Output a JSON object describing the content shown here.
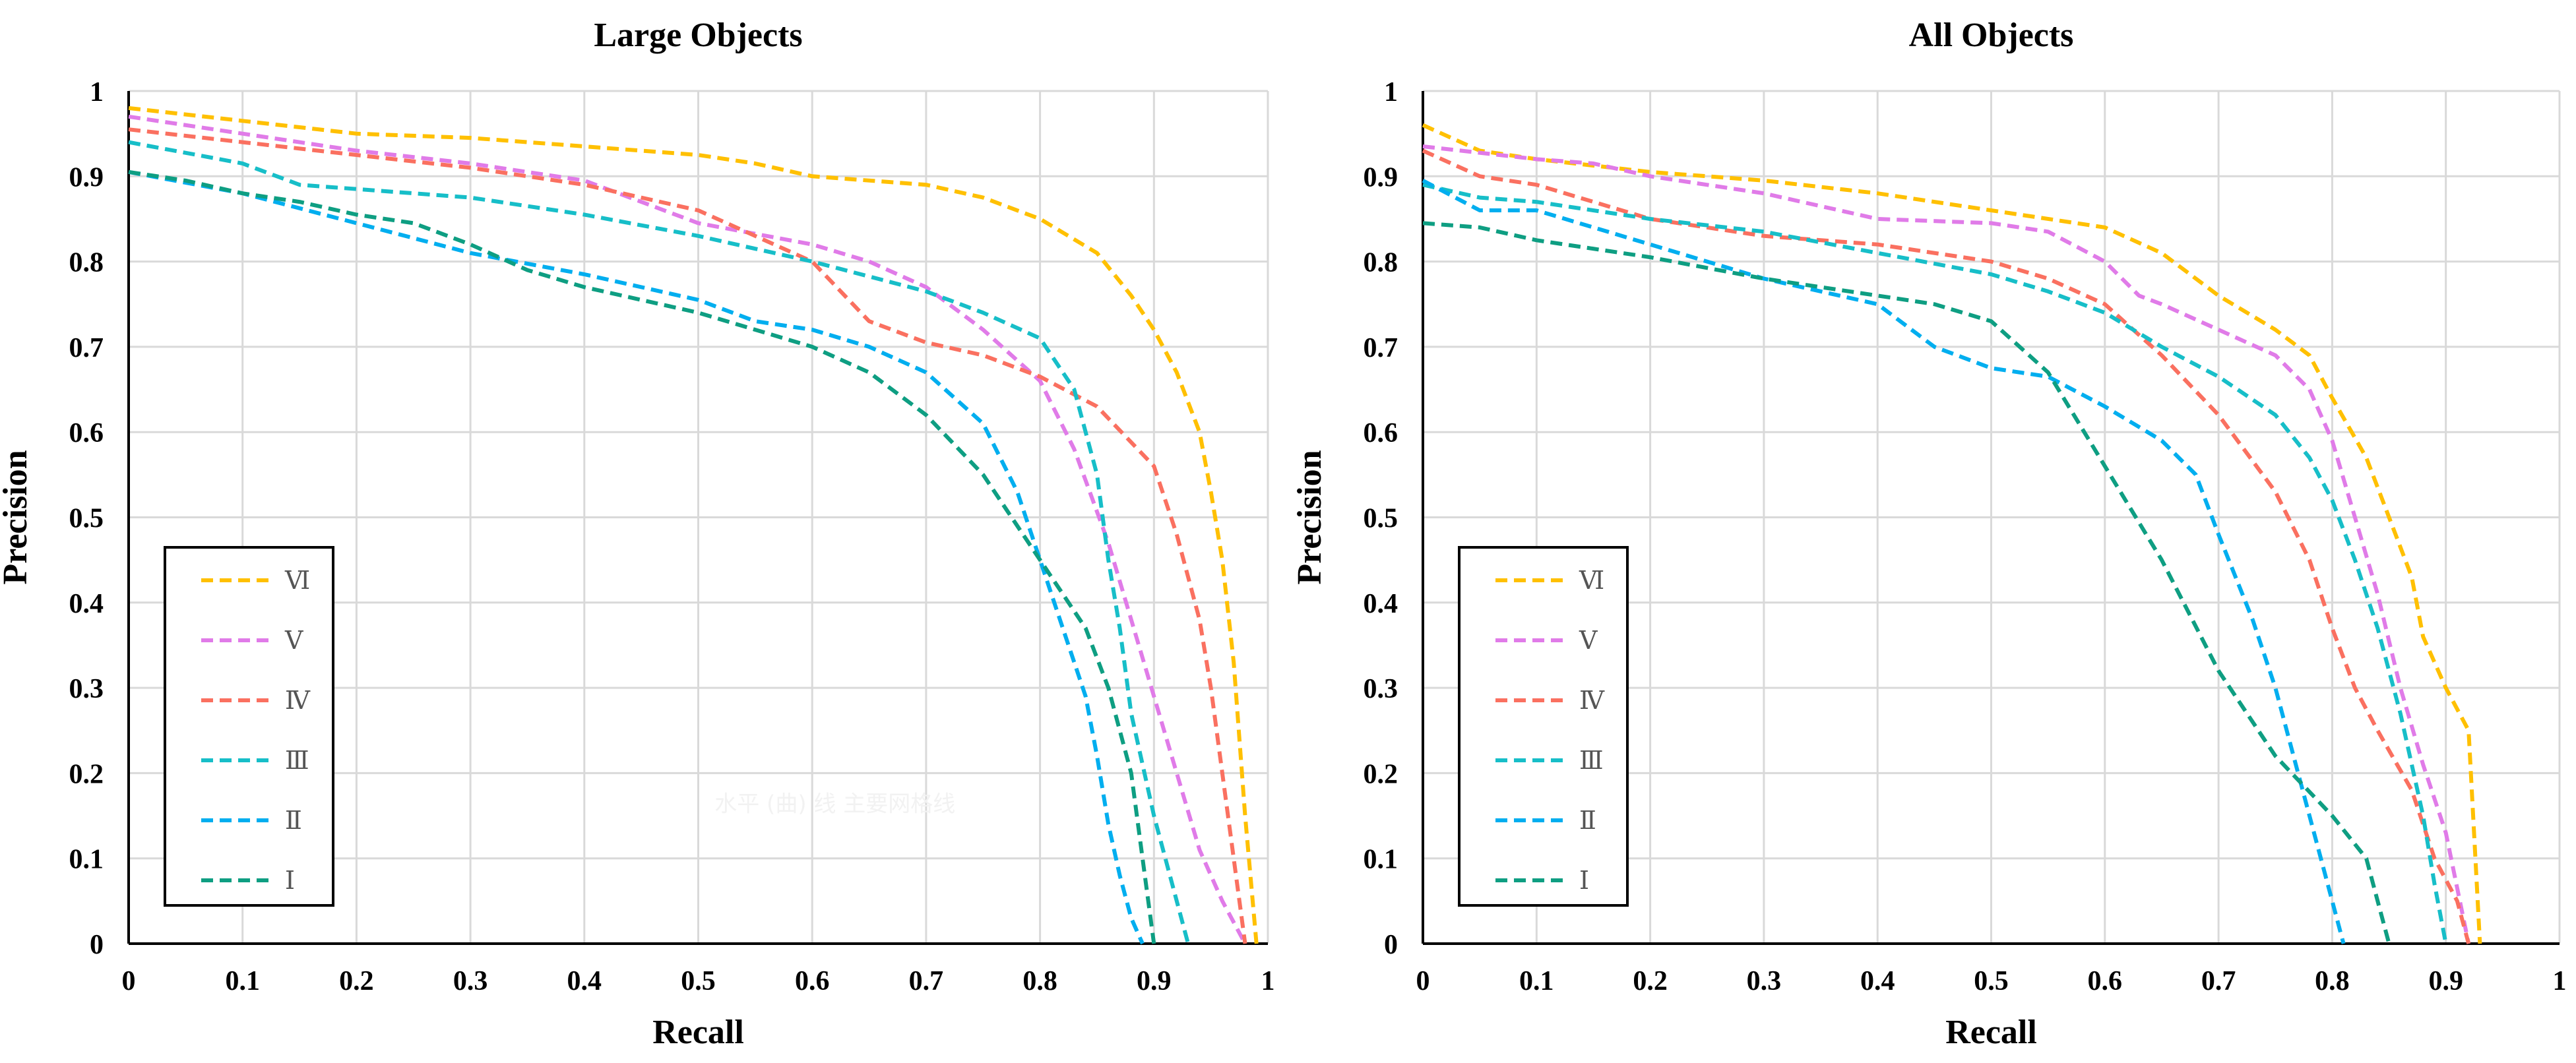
{
  "chart_data": [
    {
      "type": "line",
      "title": "Large Objects",
      "xlabel": "Recall",
      "ylabel": "Precision",
      "xlim": [
        0,
        1
      ],
      "ylim": [
        0,
        1
      ],
      "xticks": [
        "0",
        "0.1",
        "0.2",
        "0.3",
        "0.4",
        "0.5",
        "0.6",
        "0.7",
        "0.8",
        "0.9",
        "1"
      ],
      "yticks": [
        "0",
        "0.1",
        "0.2",
        "0.3",
        "0.4",
        "0.5",
        "0.6",
        "0.7",
        "0.8",
        "0.9",
        "1"
      ],
      "grid": true,
      "legend_position": "bottom-left",
      "watermark": "水平 (曲) 线 主要网格线",
      "series": [
        {
          "name": "Ⅵ",
          "color": "#FFC000",
          "x": [
            0,
            0.1,
            0.2,
            0.3,
            0.4,
            0.5,
            0.55,
            0.6,
            0.7,
            0.75,
            0.8,
            0.85,
            0.88,
            0.9,
            0.92,
            0.94,
            0.95,
            0.96,
            0.97,
            0.98,
            0.99
          ],
          "y": [
            0.98,
            0.965,
            0.95,
            0.945,
            0.935,
            0.925,
            0.915,
            0.9,
            0.89,
            0.875,
            0.85,
            0.81,
            0.76,
            0.72,
            0.67,
            0.6,
            0.53,
            0.45,
            0.33,
            0.15,
            0
          ]
        },
        {
          "name": "Ⅴ",
          "color": "#E07BE8",
          "x": [
            0,
            0.1,
            0.2,
            0.3,
            0.4,
            0.5,
            0.6,
            0.65,
            0.7,
            0.75,
            0.8,
            0.83,
            0.86,
            0.88,
            0.9,
            0.92,
            0.94,
            0.96,
            0.98
          ],
          "y": [
            0.97,
            0.95,
            0.93,
            0.915,
            0.895,
            0.845,
            0.82,
            0.8,
            0.77,
            0.72,
            0.66,
            0.58,
            0.47,
            0.38,
            0.29,
            0.2,
            0.11,
            0.05,
            0
          ]
        },
        {
          "name": "Ⅳ",
          "color": "#FA7060",
          "x": [
            0,
            0.1,
            0.2,
            0.3,
            0.4,
            0.5,
            0.55,
            0.6,
            0.65,
            0.7,
            0.75,
            0.8,
            0.85,
            0.9,
            0.92,
            0.94,
            0.95,
            0.96,
            0.97,
            0.98
          ],
          "y": [
            0.955,
            0.94,
            0.925,
            0.91,
            0.89,
            0.86,
            0.83,
            0.8,
            0.73,
            0.705,
            0.69,
            0.665,
            0.63,
            0.56,
            0.48,
            0.38,
            0.3,
            0.2,
            0.1,
            0
          ]
        },
        {
          "name": "Ⅲ",
          "color": "#17BEC8",
          "x": [
            0,
            0.1,
            0.15,
            0.2,
            0.3,
            0.4,
            0.5,
            0.6,
            0.7,
            0.75,
            0.8,
            0.83,
            0.85,
            0.86,
            0.87,
            0.88,
            0.9,
            0.92,
            0.93
          ],
          "y": [
            0.94,
            0.915,
            0.89,
            0.885,
            0.875,
            0.855,
            0.83,
            0.8,
            0.765,
            0.74,
            0.71,
            0.65,
            0.55,
            0.45,
            0.37,
            0.27,
            0.15,
            0.05,
            0
          ]
        },
        {
          "name": "Ⅱ",
          "color": "#00AEEF",
          "x": [
            0,
            0.1,
            0.2,
            0.3,
            0.4,
            0.5,
            0.55,
            0.6,
            0.65,
            0.7,
            0.75,
            0.78,
            0.8,
            0.82,
            0.84,
            0.85,
            0.86,
            0.87,
            0.88,
            0.89
          ],
          "y": [
            0.905,
            0.88,
            0.845,
            0.81,
            0.785,
            0.755,
            0.73,
            0.72,
            0.7,
            0.67,
            0.61,
            0.53,
            0.45,
            0.37,
            0.29,
            0.22,
            0.14,
            0.08,
            0.03,
            0
          ]
        },
        {
          "name": "Ⅰ",
          "color": "#0E9E82",
          "x": [
            0,
            0.05,
            0.1,
            0.15,
            0.2,
            0.25,
            0.3,
            0.35,
            0.4,
            0.45,
            0.5,
            0.55,
            0.6,
            0.65,
            0.7,
            0.75,
            0.8,
            0.84,
            0.86,
            0.88,
            0.89,
            0.9
          ],
          "y": [
            0.905,
            0.895,
            0.88,
            0.87,
            0.855,
            0.845,
            0.82,
            0.79,
            0.77,
            0.755,
            0.74,
            0.72,
            0.7,
            0.67,
            0.62,
            0.55,
            0.45,
            0.37,
            0.3,
            0.2,
            0.1,
            0
          ]
        }
      ]
    },
    {
      "type": "line",
      "title": "All Objects",
      "xlabel": "Recall",
      "ylabel": "Precision",
      "xlim": [
        0,
        1
      ],
      "ylim": [
        0,
        1
      ],
      "xticks": [
        "0",
        "0.1",
        "0.2",
        "0.3",
        "0.4",
        "0.5",
        "0.6",
        "0.7",
        "0.8",
        "0.9",
        "1"
      ],
      "yticks": [
        "0",
        "0.1",
        "0.2",
        "0.3",
        "0.4",
        "0.5",
        "0.6",
        "0.7",
        "0.8",
        "0.9",
        "1"
      ],
      "grid": true,
      "legend_position": "bottom-left",
      "series": [
        {
          "name": "Ⅵ",
          "color": "#FFC000",
          "x": [
            0,
            0.05,
            0.1,
            0.2,
            0.3,
            0.4,
            0.5,
            0.6,
            0.65,
            0.7,
            0.75,
            0.78,
            0.8,
            0.83,
            0.85,
            0.87,
            0.88,
            0.9,
            0.92,
            0.93
          ],
          "y": [
            0.96,
            0.93,
            0.92,
            0.905,
            0.895,
            0.88,
            0.86,
            0.84,
            0.81,
            0.76,
            0.72,
            0.69,
            0.64,
            0.57,
            0.5,
            0.43,
            0.36,
            0.3,
            0.25,
            0
          ]
        },
        {
          "name": "Ⅴ",
          "color": "#E07BE8",
          "x": [
            0,
            0.1,
            0.15,
            0.2,
            0.3,
            0.4,
            0.5,
            0.55,
            0.6,
            0.63,
            0.65,
            0.7,
            0.75,
            0.78,
            0.8,
            0.82,
            0.84,
            0.86,
            0.88,
            0.9,
            0.92
          ],
          "y": [
            0.935,
            0.92,
            0.915,
            0.9,
            0.88,
            0.85,
            0.845,
            0.835,
            0.8,
            0.76,
            0.75,
            0.72,
            0.69,
            0.65,
            0.59,
            0.5,
            0.41,
            0.3,
            0.21,
            0.13,
            0
          ]
        },
        {
          "name": "Ⅳ",
          "color": "#FA7060",
          "x": [
            0,
            0.05,
            0.1,
            0.2,
            0.3,
            0.4,
            0.5,
            0.55,
            0.6,
            0.65,
            0.7,
            0.75,
            0.78,
            0.8,
            0.82,
            0.84,
            0.87,
            0.89,
            0.91,
            0.92
          ],
          "y": [
            0.93,
            0.9,
            0.89,
            0.85,
            0.83,
            0.82,
            0.8,
            0.78,
            0.75,
            0.69,
            0.62,
            0.53,
            0.45,
            0.37,
            0.3,
            0.25,
            0.18,
            0.1,
            0.05,
            0
          ]
        },
        {
          "name": "Ⅲ",
          "color": "#17BEC8",
          "x": [
            0,
            0.05,
            0.1,
            0.2,
            0.3,
            0.4,
            0.5,
            0.55,
            0.6,
            0.65,
            0.7,
            0.75,
            0.78,
            0.8,
            0.82,
            0.84,
            0.86,
            0.88,
            0.89,
            0.9
          ],
          "y": [
            0.89,
            0.875,
            0.87,
            0.85,
            0.835,
            0.81,
            0.785,
            0.765,
            0.74,
            0.7,
            0.665,
            0.62,
            0.57,
            0.52,
            0.45,
            0.37,
            0.27,
            0.15,
            0.07,
            0
          ]
        },
        {
          "name": "Ⅱ",
          "color": "#00AEEF",
          "x": [
            0,
            0.05,
            0.1,
            0.2,
            0.3,
            0.4,
            0.45,
            0.5,
            0.55,
            0.6,
            0.65,
            0.68,
            0.7,
            0.73,
            0.75,
            0.77,
            0.79,
            0.8,
            0.81
          ],
          "y": [
            0.895,
            0.86,
            0.86,
            0.82,
            0.78,
            0.75,
            0.7,
            0.675,
            0.665,
            0.63,
            0.59,
            0.55,
            0.48,
            0.38,
            0.3,
            0.2,
            0.1,
            0.05,
            0
          ]
        },
        {
          "name": "Ⅰ",
          "color": "#0E9E82",
          "x": [
            0,
            0.05,
            0.1,
            0.2,
            0.3,
            0.4,
            0.45,
            0.5,
            0.55,
            0.6,
            0.65,
            0.7,
            0.75,
            0.8,
            0.83,
            0.84,
            0.85
          ],
          "y": [
            0.845,
            0.84,
            0.825,
            0.805,
            0.78,
            0.76,
            0.75,
            0.73,
            0.67,
            0.56,
            0.45,
            0.32,
            0.22,
            0.15,
            0.1,
            0.05,
            0
          ]
        }
      ]
    }
  ]
}
